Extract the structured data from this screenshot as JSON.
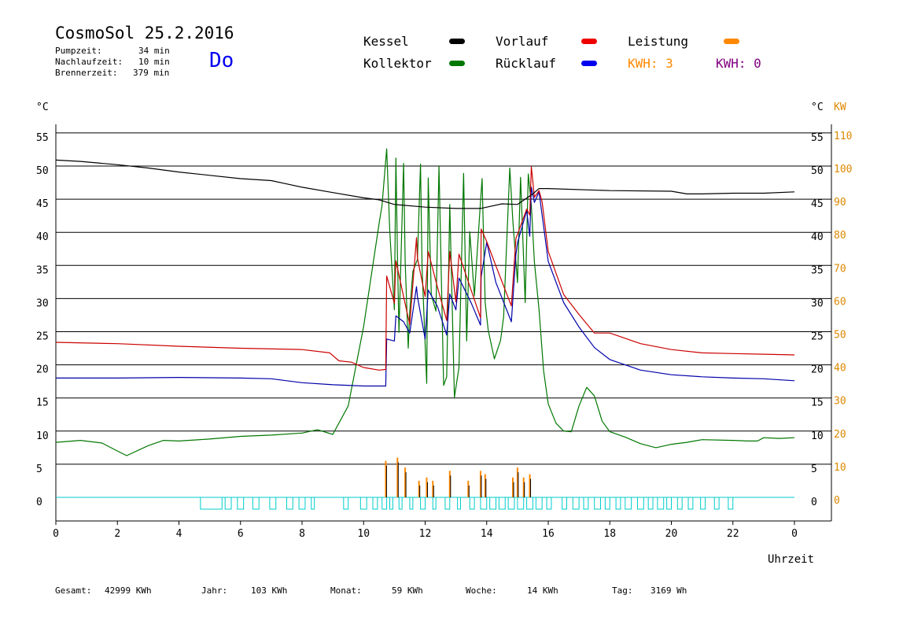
{
  "header": {
    "title": "CosmoSol 25.2.2016",
    "day": "Do",
    "stats": [
      {
        "label": "Pumpzeit:",
        "value": "34 min"
      },
      {
        "label": "Nachlaufzeit:",
        "value": "10 min"
      },
      {
        "label": "Brennerzeit:",
        "value": "379 min"
      }
    ]
  },
  "legend": {
    "kessel": "Kessel",
    "kollektor": "Kollektor",
    "vorlauf": "Vorlauf",
    "ruecklauf": "Rücklauf",
    "leistung": "Leistung",
    "kwh_a": "KWH: 3",
    "kwh_b": "KWH: 0"
  },
  "colors": {
    "kessel": "#000000",
    "kollektor": "#007700",
    "vorlauf": "#cc0000",
    "ruecklauf": "#0000aa",
    "leistung": "#ff8800",
    "kwh_b": "#800080",
    "pump": "#00cccc",
    "grid": "#000000"
  },
  "footer": [
    {
      "label": "Gesamt:",
      "value": "42999 KWh"
    },
    {
      "label": "Jahr:",
      "value": "103 KWh"
    },
    {
      "label": "Monat:",
      "value": "59 KWh"
    },
    {
      "label": "Woche:",
      "value": "14 KWh"
    },
    {
      "label": "Tag:",
      "value": "3169 Wh"
    }
  ],
  "chart_data": {
    "type": "line",
    "y_left_label": "°C",
    "y_right_label": "°C",
    "y2_label": "KW",
    "xlabel": "Uhrzeit",
    "xlim": [
      0,
      24
    ],
    "ylim": [
      -3.5,
      57
    ],
    "x_ticks": [
      "0",
      "2",
      "4",
      "6",
      "8",
      "10",
      "12",
      "14",
      "16",
      "18",
      "20",
      "22",
      "0"
    ],
    "y_ticks": [
      0,
      5,
      10,
      15,
      20,
      25,
      30,
      35,
      40,
      45,
      50,
      55
    ],
    "y2_ticks": [
      "0",
      "10",
      "20",
      "30",
      "40",
      "50",
      "60",
      "70",
      "80",
      "90",
      "100",
      "110"
    ],
    "grid": true,
    "series": [
      {
        "name": "Kessel",
        "key": "kessel",
        "x": [
          0,
          0.8,
          2,
          3,
          4,
          5,
          6,
          7,
          7.5,
          8,
          9,
          10,
          10.5,
          11,
          12,
          13,
          13.8,
          14.5,
          15,
          15.5,
          15.7,
          16,
          18,
          20,
          20.5,
          21,
          22,
          23,
          24
        ],
        "y": [
          50.9,
          50.7,
          50.2,
          49.7,
          49.1,
          48.6,
          48.1,
          47.8,
          47.3,
          46.8,
          46,
          45.2,
          44.9,
          44.2,
          43.8,
          43.6,
          43.6,
          44.3,
          44.2,
          45.8,
          46.6,
          46.6,
          46.3,
          46.2,
          45.8,
          45.8,
          45.9,
          45.9,
          46.1
        ]
      },
      {
        "name": "Vorlauf",
        "key": "vorlauf",
        "x": [
          0,
          2,
          4,
          6,
          8,
          8.9,
          9.2,
          9.6,
          10,
          10.5,
          10.72,
          10.75,
          11,
          11.05,
          11.3,
          11.5,
          11.72,
          11.75,
          12,
          12.1,
          12.4,
          12.7,
          12.8,
          13,
          13.1,
          13.5,
          13.8,
          13.82,
          14,
          14.3,
          14.8,
          14.95,
          15.0,
          15.3,
          15.4,
          15.45,
          15.55,
          15.7,
          15.8,
          16,
          16.5,
          17,
          17.5,
          18,
          19,
          20,
          21,
          22,
          23,
          24
        ],
        "y": [
          23.4,
          23.2,
          22.8,
          22.5,
          22.3,
          21.8,
          20.6,
          20.4,
          19.6,
          19.2,
          19.3,
          33.4,
          29.3,
          35.7,
          30.3,
          26.1,
          39.2,
          36.1,
          30.3,
          37.1,
          31.7,
          26.7,
          37.1,
          29.5,
          36.7,
          31.2,
          27.1,
          40.5,
          38.6,
          34.9,
          28.9,
          39.1,
          39.7,
          43.5,
          42.6,
          49.9,
          45.3,
          46.3,
          44.6,
          37.1,
          30.6,
          27.6,
          24.8,
          24.8,
          23.2,
          22.3,
          21.8,
          21.7,
          21.6,
          21.5
        ]
      },
      {
        "name": "Rücklauf",
        "key": "ruecklauf",
        "x": [
          0,
          2,
          4,
          6,
          7,
          8,
          9,
          10,
          10.68,
          10.7,
          10.72,
          10.75,
          11,
          11.05,
          11.3,
          11.5,
          11.72,
          11.75,
          12,
          12.1,
          12.4,
          12.7,
          12.8,
          13,
          13.1,
          13.5,
          13.8,
          13.82,
          14,
          14.3,
          14.8,
          14.95,
          15.0,
          15.3,
          15.4,
          15.45,
          15.55,
          15.7,
          15.8,
          16,
          16.5,
          17,
          17.5,
          18,
          19,
          20,
          21,
          22,
          23,
          24
        ],
        "y": [
          18,
          18,
          18.1,
          18,
          17.9,
          17.3,
          17,
          16.8,
          16.8,
          16.8,
          16.8,
          23.9,
          23.6,
          27.4,
          26.5,
          24.8,
          31.8,
          30.3,
          23.9,
          31.3,
          28.8,
          24.5,
          30.7,
          28.3,
          33.1,
          29.3,
          26,
          33.3,
          38.5,
          32.4,
          26.5,
          36.7,
          38.4,
          43.3,
          39.4,
          46.8,
          44.5,
          46.1,
          42.6,
          35.6,
          29.4,
          25.7,
          22.6,
          20.8,
          19.2,
          18.5,
          18.2,
          18,
          17.9,
          17.6
        ]
      },
      {
        "name": "Kollektor",
        "key": "kollektor",
        "x": [
          0,
          0.8,
          1.5,
          2,
          2.3,
          3,
          3.5,
          4,
          5,
          6,
          7,
          8,
          8.5,
          9,
          9.5,
          10,
          10.5,
          10.6,
          10.75,
          10.85,
          11.0,
          11.05,
          11.1,
          11.15,
          11.3,
          11.35,
          11.45,
          11.5,
          11.6,
          11.75,
          11.85,
          11.9,
          12.05,
          12.1,
          12.2,
          12.35,
          12.45,
          12.6,
          12.7,
          12.8,
          12.95,
          13.1,
          13.25,
          13.35,
          13.45,
          13.6,
          13.8,
          13.85,
          13.95,
          14.05,
          14.25,
          14.45,
          14.55,
          14.75,
          14.85,
          15.0,
          15.1,
          15.25,
          15.35,
          15.45,
          15.55,
          15.7,
          15.85,
          16.0,
          16.25,
          16.5,
          16.75,
          17.0,
          17.25,
          17.5,
          17.75,
          18,
          18.5,
          19,
          19.5,
          20,
          20.5,
          21,
          22,
          22.5,
          22.8,
          23,
          23.5,
          24
        ],
        "y": [
          8.3,
          8.6,
          8.2,
          7,
          6.3,
          7.8,
          8.6,
          8.5,
          8.8,
          9.2,
          9.4,
          9.7,
          10.2,
          9.5,
          13.8,
          25.8,
          41.2,
          44.1,
          52.6,
          40.2,
          28.3,
          51.2,
          36.5,
          24.9,
          50.4,
          35.6,
          22.5,
          28.1,
          34.1,
          35.9,
          50.3,
          34.6,
          17.2,
          48.2,
          30.6,
          28.1,
          49.9,
          16.9,
          18.2,
          44.2,
          15.1,
          19.6,
          48.9,
          23.6,
          40.1,
          30.4,
          44.7,
          48.1,
          29.4,
          25.2,
          20.9,
          23.7,
          27.3,
          49.7,
          41.7,
          32.4,
          48.3,
          29.4,
          48.8,
          44.1,
          35.5,
          28.3,
          19.1,
          14.1,
          11.2,
          10,
          9.9,
          13.8,
          16.6,
          15.3,
          11.5,
          9.9,
          9.1,
          8.1,
          7.5,
          8,
          8.3,
          8.7,
          8.6,
          8.5,
          8.5,
          9,
          8.9,
          9
        ]
      }
    ],
    "leistung_spikes": [
      {
        "x": 10.72,
        "kw": 11
      },
      {
        "x": 11.1,
        "kw": 12
      },
      {
        "x": 11.35,
        "kw": 9
      },
      {
        "x": 11.8,
        "kw": 5
      },
      {
        "x": 12.05,
        "kw": 6
      },
      {
        "x": 12.25,
        "kw": 5
      },
      {
        "x": 12.8,
        "kw": 8
      },
      {
        "x": 13.4,
        "kw": 5
      },
      {
        "x": 13.8,
        "kw": 8
      },
      {
        "x": 13.95,
        "kw": 7
      },
      {
        "x": 14.85,
        "kw": 6
      },
      {
        "x": 15.0,
        "kw": 9
      },
      {
        "x": 15.2,
        "kw": 6
      },
      {
        "x": 15.4,
        "kw": 7
      }
    ],
    "pump_periods": [
      [
        4.7,
        5.4
      ],
      [
        5.5,
        5.7
      ],
      [
        5.9,
        6.1
      ],
      [
        6.4,
        6.6
      ],
      [
        6.95,
        7.15
      ],
      [
        7.5,
        7.7
      ],
      [
        7.9,
        8.1
      ],
      [
        8.3,
        8.4
      ],
      [
        9.35,
        9.5
      ],
      [
        9.9,
        10.1
      ],
      [
        10.3,
        10.45
      ],
      [
        10.6,
        10.75
      ],
      [
        10.85,
        10.95
      ],
      [
        11.15,
        11.25
      ],
      [
        11.5,
        11.6
      ],
      [
        11.85,
        12
      ],
      [
        12.25,
        12.35
      ],
      [
        12.65,
        12.8
      ],
      [
        13.05,
        13.15
      ],
      [
        13.45,
        13.6
      ],
      [
        13.8,
        14.0
      ],
      [
        14.1,
        14.3
      ],
      [
        14.4,
        14.6
      ],
      [
        14.7,
        14.9
      ],
      [
        15.0,
        15.2
      ],
      [
        15.3,
        15.5
      ],
      [
        15.6,
        15.8
      ],
      [
        15.95,
        16.1
      ],
      [
        16.45,
        16.6
      ],
      [
        16.8,
        17.0
      ],
      [
        17.15,
        17.3
      ],
      [
        17.5,
        17.7
      ],
      [
        17.85,
        18.0
      ],
      [
        18.2,
        18.35
      ],
      [
        18.5,
        18.7
      ],
      [
        18.9,
        19.1
      ],
      [
        19.25,
        19.4
      ],
      [
        19.55,
        19.75
      ],
      [
        19.85,
        20.0
      ],
      [
        20.2,
        20.35
      ],
      [
        20.55,
        20.7
      ],
      [
        20.95,
        21.1
      ],
      [
        21.4,
        21.55
      ],
      [
        21.85,
        22.0
      ]
    ]
  }
}
